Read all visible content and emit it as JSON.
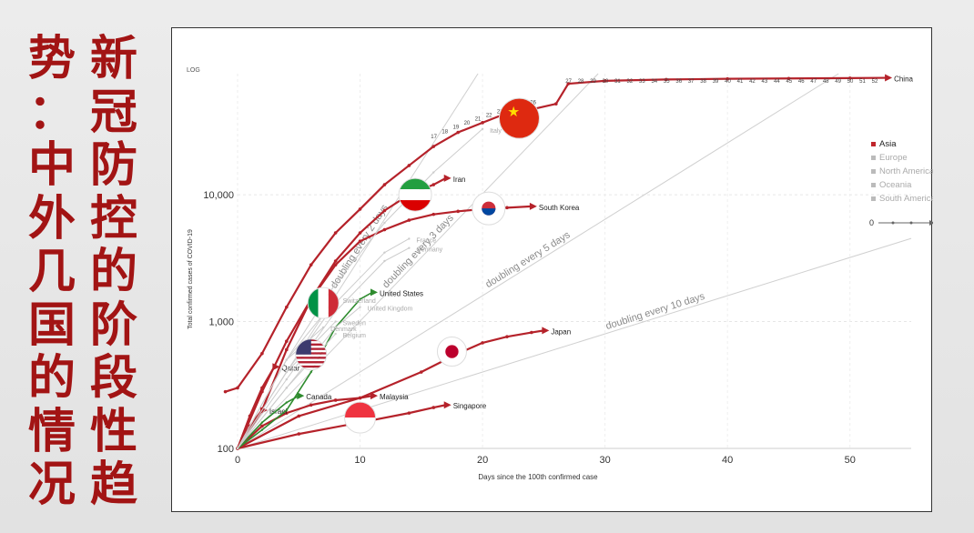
{
  "slide": {
    "title_right_column": [
      "新",
      "冠",
      "防",
      "控",
      "的",
      "阶",
      "段",
      "性",
      "趋"
    ],
    "title_left_column": [
      "势",
      "：",
      "中",
      "外",
      "几",
      "国",
      "的",
      "情",
      "况"
    ]
  },
  "chart_data": {
    "type": "line",
    "title": "",
    "xlabel": "Days since the 100th confirmed case",
    "ylabel": "Total confirmed cases of COVID-19",
    "y_scale": "log",
    "y_scale_label": "LOG",
    "xlim": [
      0,
      55
    ],
    "ylim": [
      100,
      90000
    ],
    "x_ticks": [
      0,
      10,
      20,
      30,
      40,
      50
    ],
    "x_tick_labels": [
      "0",
      "10",
      "20",
      "30",
      "40",
      "50"
    ],
    "y_ticks": [
      100,
      1000,
      10000
    ],
    "y_tick_labels": [
      "100",
      "1,000",
      "10,000"
    ],
    "grid": true,
    "legend": {
      "placement": "right",
      "entries": [
        {
          "label": "Asia",
          "color": "#c0262c",
          "active": true
        },
        {
          "label": "Europe",
          "color": "#bbbbbb",
          "active": false
        },
        {
          "label": "North America",
          "color": "#bbbbbb",
          "active": false
        },
        {
          "label": "Oceania",
          "color": "#bbbbbb",
          "active": false
        },
        {
          "label": "South America",
          "color": "#bbbbbb",
          "active": false
        }
      ],
      "slider_start": "0",
      "slider_end": "54"
    },
    "reference_lines": [
      {
        "label": "doubling every 2 days",
        "days": 2
      },
      {
        "label": "doubling every 3 days",
        "days": 3
      },
      {
        "label": "doubling every 5 days",
        "days": 5
      },
      {
        "label": "doubling every 10 days",
        "days": 10
      }
    ],
    "series": [
      {
        "name": "China",
        "color": "#b5222a",
        "highlight": true,
        "flag": "china",
        "x": [
          -1,
          0,
          2,
          4,
          6,
          8,
          10,
          12,
          14,
          16,
          18,
          20,
          22,
          23,
          24,
          26,
          27,
          30,
          35,
          40,
          45,
          50,
          53
        ],
        "y": [
          280,
          300,
          560,
          1300,
          2800,
          5000,
          7700,
          12000,
          17000,
          24000,
          31000,
          37000,
          44000,
          45000,
          47000,
          52000,
          75000,
          79000,
          81000,
          82000,
          82500,
          83000,
          83500
        ],
        "label_labels": [
          "27",
          "28",
          "29",
          "30",
          "31",
          "32",
          "33",
          "34",
          "35",
          "36",
          "37",
          "38",
          "39",
          "40",
          "41",
          "42",
          "43",
          "44",
          "45",
          "46",
          "47",
          "48",
          "49",
          "50",
          "51",
          "52"
        ]
      },
      {
        "name": "Iran",
        "color": "#b5222a",
        "highlight": true,
        "flag": "iran",
        "x": [
          0,
          2,
          4,
          6,
          8,
          10,
          12,
          14,
          16,
          17
        ],
        "y": [
          100,
          200,
          600,
          1500,
          3000,
          5000,
          7500,
          10000,
          12000,
          13500
        ]
      },
      {
        "name": "South Korea",
        "color": "#b5222a",
        "highlight": true,
        "flag": "south-korea",
        "x": [
          0,
          2,
          4,
          6,
          8,
          10,
          12,
          14,
          16,
          18,
          20,
          22,
          24
        ],
        "y": [
          100,
          280,
          700,
          1500,
          2800,
          4300,
          5300,
          6300,
          7000,
          7400,
          7700,
          7900,
          8100
        ]
      },
      {
        "name": "Japan",
        "color": "#b5222a",
        "highlight": true,
        "flag": "japan",
        "x": [
          0,
          5,
          10,
          15,
          18,
          20,
          22,
          24,
          25
        ],
        "y": [
          100,
          180,
          250,
          400,
          560,
          680,
          760,
          820,
          850
        ]
      },
      {
        "name": "Singapore",
        "color": "#b5222a",
        "highlight": true,
        "flag": "singapore",
        "x": [
          0,
          5,
          10,
          14,
          16,
          17
        ],
        "y": [
          100,
          130,
          160,
          190,
          210,
          220
        ]
      },
      {
        "name": "Malaysia",
        "color": "#b5222a",
        "highlight": true,
        "flag": "",
        "x": [
          0,
          2,
          4,
          6,
          8,
          10,
          11
        ],
        "y": [
          100,
          150,
          190,
          220,
          240,
          250,
          260
        ]
      },
      {
        "name": "Qatar",
        "color": "#b5222a",
        "highlight": true,
        "flag": "",
        "x": [
          0,
          1,
          2,
          3
        ],
        "y": [
          100,
          180,
          300,
          440
        ]
      },
      {
        "name": "Israel",
        "color": "#b5222a",
        "highlight": true,
        "flag": "",
        "x": [
          0,
          1,
          2
        ],
        "y": [
          100,
          150,
          200
        ]
      },
      {
        "name": "United States",
        "color": "#2e8b2e",
        "highlight": false,
        "flag": "united-states",
        "x": [
          0,
          2,
          4,
          6,
          8,
          10,
          11
        ],
        "y": [
          100,
          140,
          200,
          400,
          900,
          1500,
          1700
        ]
      },
      {
        "name": "Canada",
        "color": "#2e8b2e",
        "highlight": false,
        "flag": "",
        "x": [
          0,
          2,
          4,
          5
        ],
        "y": [
          100,
          160,
          230,
          260
        ]
      },
      {
        "name": "Italy",
        "color": "#cccccc",
        "highlight": false,
        "flag": "italy",
        "x": [
          0,
          4,
          8,
          12,
          16,
          20
        ],
        "y": [
          100,
          500,
          2000,
          6000,
          15000,
          33000
        ]
      },
      {
        "name": "France",
        "color": "#cccccc",
        "highlight": false,
        "flag": "",
        "x": [
          0,
          4,
          8,
          12,
          14
        ],
        "y": [
          100,
          400,
          1400,
          3500,
          4500
        ]
      },
      {
        "name": "Germany",
        "color": "#cccccc",
        "highlight": false,
        "flag": "",
        "x": [
          0,
          4,
          8,
          12,
          14
        ],
        "y": [
          100,
          350,
          1200,
          3000,
          3800
        ]
      },
      {
        "name": "Switzerland",
        "color": "#cccccc",
        "highlight": false,
        "flag": "",
        "x": [
          0,
          4,
          8
        ],
        "y": [
          100,
          500,
          1500
        ]
      },
      {
        "name": "United Kingdom",
        "color": "#cccccc",
        "highlight": false,
        "flag": "",
        "x": [
          0,
          4,
          8,
          10
        ],
        "y": [
          100,
          300,
          900,
          1300
        ]
      },
      {
        "name": "Sweden",
        "color": "#cccccc",
        "highlight": false,
        "flag": "",
        "x": [
          0,
          4,
          8
        ],
        "y": [
          100,
          400,
          1000
        ]
      },
      {
        "name": "Denmark",
        "color": "#cccccc",
        "highlight": false,
        "flag": "",
        "x": [
          0,
          4,
          7
        ],
        "y": [
          100,
          500,
          900
        ]
      },
      {
        "name": "Belgium",
        "color": "#cccccc",
        "highlight": false,
        "flag": "",
        "x": [
          0,
          4,
          8
        ],
        "y": [
          100,
          300,
          800
        ]
      }
    ],
    "annotations": {
      "china_top_labels": [
        "17",
        "18",
        "19",
        "20",
        "21",
        "22",
        "23",
        "24",
        "25",
        "26"
      ],
      "flags": [
        "china",
        "iran",
        "south-korea",
        "italy",
        "united-states",
        "japan",
        "singapore"
      ]
    }
  }
}
